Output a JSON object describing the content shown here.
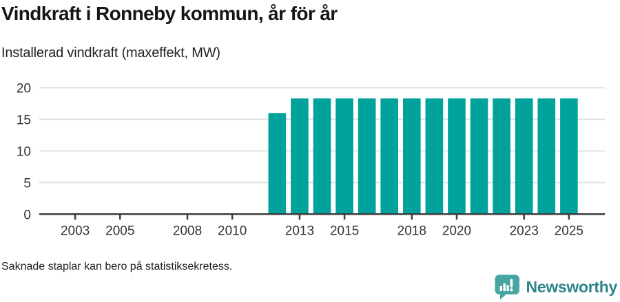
{
  "header": {
    "title": "Vindkraft i Ronneby kommun, år för år",
    "subtitle": "Installerad vindkraft (maxeffekt, MW)"
  },
  "footer": {
    "note": "Saknade staplar kan bero på statistiksekretess."
  },
  "branding": {
    "name": "Newsworthy",
    "mark_icon": "speech-bubble-bar-chart-icon",
    "mark_color": "#47a6a1",
    "text_color": "#2c8489"
  },
  "colors": {
    "bar": "#00a29b",
    "grid": "#dedede",
    "axis": "#3d3d3d",
    "tick_text": "#333333"
  },
  "chart_data": {
    "type": "bar",
    "title": "Vindkraft i Ronneby kommun, år för år",
    "subtitle": "Installerad vindkraft (maxeffekt, MW)",
    "unit": "MW",
    "categories": [
      2002,
      2003,
      2004,
      2005,
      2006,
      2007,
      2008,
      2009,
      2010,
      2011,
      2012,
      2013,
      2014,
      2015,
      2016,
      2017,
      2018,
      2019,
      2020,
      2021,
      2022,
      2023,
      2024,
      2025
    ],
    "values": [
      null,
      null,
      null,
      null,
      null,
      null,
      null,
      null,
      null,
      null,
      16,
      18.3,
      18.3,
      18.3,
      18.3,
      18.3,
      18.3,
      18.3,
      18.3,
      18.3,
      18.3,
      18.3,
      18.3,
      18.3
    ],
    "missing_values_meaning": "Saknade staplar kan bero på statistiksekretess.",
    "x_ticks": [
      2003,
      2005,
      2008,
      2010,
      2013,
      2015,
      2018,
      2020,
      2023,
      2025
    ],
    "y_ticks": [
      0,
      5,
      10,
      15,
      20
    ],
    "xlim": [
      2001.4,
      2026.6
    ],
    "ylim": [
      0,
      20
    ],
    "grid": "horizontal-only",
    "legend": "none",
    "bar_color": "#00a29b"
  }
}
